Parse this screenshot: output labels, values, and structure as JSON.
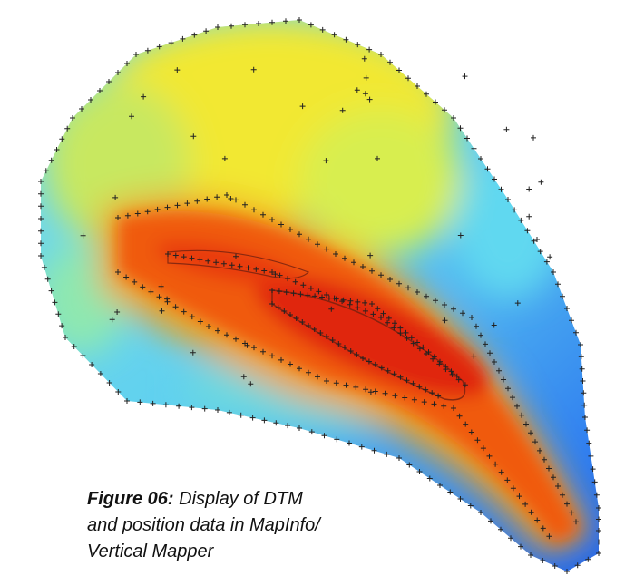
{
  "figure": {
    "label": "Figure 06:",
    "caption_lines": [
      "Display of DTM",
      "and position data in MapInfo/",
      "Vertical Mapper"
    ]
  }
}
